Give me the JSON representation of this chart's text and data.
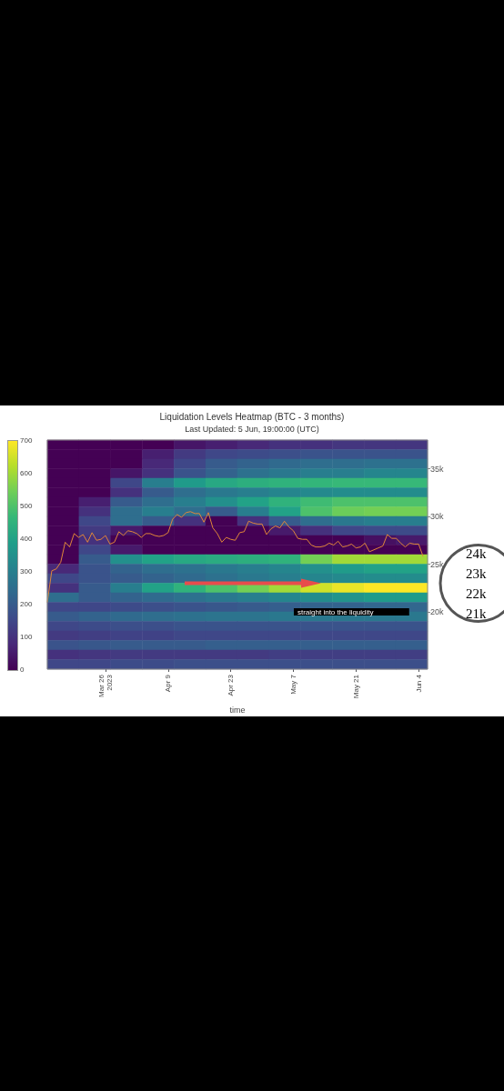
{
  "chart_data": {
    "type": "heatmap",
    "title": "Liquidation Levels Heatmap (BTC - 3 months)",
    "subtitle": "Last Updated: 5 Jun, 19:00:00 (UTC)",
    "xlabel": "time",
    "cells": [
      [
        0,
        0,
        0,
        0,
        40,
        60,
        80,
        100,
        100,
        110,
        110,
        110
      ],
      [
        0,
        0,
        0,
        60,
        120,
        150,
        160,
        170,
        180,
        180,
        180,
        180
      ],
      [
        0,
        0,
        0,
        80,
        150,
        200,
        220,
        240,
        250,
        250,
        260,
        260
      ],
      [
        0,
        0,
        40,
        100,
        180,
        220,
        260,
        280,
        300,
        300,
        320,
        320
      ],
      [
        0,
        0,
        150,
        300,
        380,
        420,
        440,
        450,
        460,
        470,
        470,
        470
      ],
      [
        0,
        0,
        100,
        200,
        250,
        280,
        300,
        320,
        330,
        340,
        340,
        340
      ],
      [
        0,
        60,
        200,
        250,
        300,
        350,
        400,
        450,
        480,
        500,
        500,
        500
      ],
      [
        0,
        100,
        250,
        300,
        250,
        200,
        300,
        400,
        500,
        540,
        550,
        550
      ],
      [
        0,
        150,
        250,
        200,
        100,
        0,
        100,
        200,
        250,
        280,
        300,
        300
      ],
      [
        0,
        120,
        50,
        0,
        0,
        0,
        0,
        50,
        100,
        150,
        160,
        160
      ],
      [
        0,
        100,
        0,
        0,
        0,
        0,
        0,
        0,
        0,
        0,
        30,
        50
      ],
      [
        0,
        150,
        50,
        0,
        0,
        0,
        0,
        0,
        0,
        0,
        0,
        0
      ],
      [
        0,
        200,
        350,
        400,
        420,
        430,
        440,
        450,
        550,
        600,
        600,
        600
      ],
      [
        80,
        180,
        220,
        250,
        260,
        280,
        300,
        320,
        350,
        380,
        400,
        400
      ],
      [
        150,
        180,
        200,
        220,
        240,
        260,
        280,
        300,
        320,
        330,
        340,
        340
      ],
      [
        100,
        200,
        300,
        400,
        450,
        500,
        550,
        600,
        650,
        680,
        700,
        700
      ],
      [
        250,
        200,
        220,
        240,
        260,
        280,
        300,
        320,
        340,
        360,
        380,
        380
      ],
      [
        150,
        150,
        160,
        170,
        180,
        190,
        200,
        210,
        220,
        220,
        230,
        230
      ],
      [
        200,
        220,
        240,
        250,
        260,
        270,
        270,
        280,
        280,
        280,
        280,
        280
      ],
      [
        150,
        160,
        170,
        170,
        180,
        180,
        180,
        180,
        180,
        180,
        180,
        180
      ],
      [
        120,
        130,
        140,
        140,
        150,
        150,
        150,
        150,
        150,
        150,
        150,
        150
      ],
      [
        180,
        190,
        200,
        200,
        200,
        210,
        210,
        210,
        210,
        210,
        210,
        210
      ],
      [
        100,
        110,
        120,
        120,
        120,
        120,
        120,
        130,
        130,
        130,
        130,
        130
      ],
      [
        150,
        150,
        160,
        160,
        170,
        170,
        170,
        170,
        170,
        170,
        170,
        170
      ]
    ],
    "clim": [
      0,
      700
    ],
    "cticks": [
      0,
      100,
      200,
      300,
      400,
      500,
      600,
      700
    ],
    "xlim": [
      "2023-03-13",
      "2023-06-06"
    ],
    "xticks": [
      {
        "value": "2023-03-26",
        "label": "Mar 26\n2023"
      },
      {
        "value": "2023-04-09",
        "label": "Apr 9"
      },
      {
        "value": "2023-04-23",
        "label": "Apr 23"
      },
      {
        "value": "2023-05-07",
        "label": "May 7"
      },
      {
        "value": "2023-05-21",
        "label": "May 21"
      },
      {
        "value": "2023-06-04",
        "label": "Jun 4"
      }
    ],
    "ylim": [
      14000,
      38000
    ],
    "yticks": [
      {
        "value": 20000,
        "label": "20k"
      },
      {
        "value": 25000,
        "label": "25k"
      },
      {
        "value": 30000,
        "label": "30k"
      },
      {
        "value": 35000,
        "label": "35k"
      }
    ],
    "series": [
      {
        "type": "line",
        "color": "#e0873a",
        "x": [
          "2023-03-13",
          "2023-03-14",
          "2023-03-15",
          "2023-03-16",
          "2023-03-17",
          "2023-03-18",
          "2023-03-19",
          "2023-03-20",
          "2023-03-21",
          "2023-03-22",
          "2023-03-23",
          "2023-03-24",
          "2023-03-25",
          "2023-03-26",
          "2023-03-27",
          "2023-03-28",
          "2023-03-29",
          "2023-03-30",
          "2023-03-31",
          "2023-04-01",
          "2023-04-02",
          "2023-04-03",
          "2023-04-04",
          "2023-04-05",
          "2023-04-06",
          "2023-04-07",
          "2023-04-08",
          "2023-04-09",
          "2023-04-10",
          "2023-04-11",
          "2023-04-12",
          "2023-04-13",
          "2023-04-14",
          "2023-04-15",
          "2023-04-16",
          "2023-04-17",
          "2023-04-18",
          "2023-04-19",
          "2023-04-20",
          "2023-04-21",
          "2023-04-22",
          "2023-04-23",
          "2023-04-24",
          "2023-04-25",
          "2023-04-26",
          "2023-04-27",
          "2023-04-28",
          "2023-04-29",
          "2023-04-30",
          "2023-05-01",
          "2023-05-02",
          "2023-05-03",
          "2023-05-04",
          "2023-05-05",
          "2023-05-06",
          "2023-05-07",
          "2023-05-08",
          "2023-05-09",
          "2023-05-10",
          "2023-05-11",
          "2023-05-12",
          "2023-05-13",
          "2023-05-14",
          "2023-05-15",
          "2023-05-16",
          "2023-05-17",
          "2023-05-18",
          "2023-05-19",
          "2023-05-20",
          "2023-05-21",
          "2023-05-22",
          "2023-05-23",
          "2023-05-24",
          "2023-05-25",
          "2023-05-26",
          "2023-05-27",
          "2023-05-28",
          "2023-05-29",
          "2023-05-30",
          "2023-05-31",
          "2023-06-01",
          "2023-06-02",
          "2023-06-03",
          "2023-06-04",
          "2023-06-05"
        ],
        "values": [
          21000,
          24300,
          24500,
          25200,
          27300,
          26800,
          28200,
          27800,
          28100,
          27300,
          28300,
          27500,
          27600,
          28000,
          27100,
          27300,
          28400,
          28000,
          28500,
          28400,
          28200,
          27800,
          28200,
          28200,
          28000,
          27900,
          28000,
          28300,
          29700,
          30200,
          29900,
          30400,
          30500,
          30300,
          30300,
          29400,
          30400,
          28800,
          28200,
          27300,
          27800,
          27600,
          27500,
          28300,
          28400,
          29500,
          29300,
          29200,
          29200,
          28100,
          28700,
          29000,
          28800,
          29500,
          28900,
          28500,
          27700,
          27600,
          27600,
          27000,
          26800,
          26800,
          26900,
          27200,
          27000,
          27400,
          26800,
          26900,
          27100,
          26700,
          26800,
          27200,
          26300,
          26500,
          26700,
          26900,
          28100,
          27700,
          27700,
          27200,
          26800,
          27200,
          27100,
          27100,
          25800
        ]
      }
    ],
    "marker": "none",
    "annotations": [
      "straight into the liquidity",
      "24k",
      "23k",
      "22k",
      "21k"
    ]
  }
}
